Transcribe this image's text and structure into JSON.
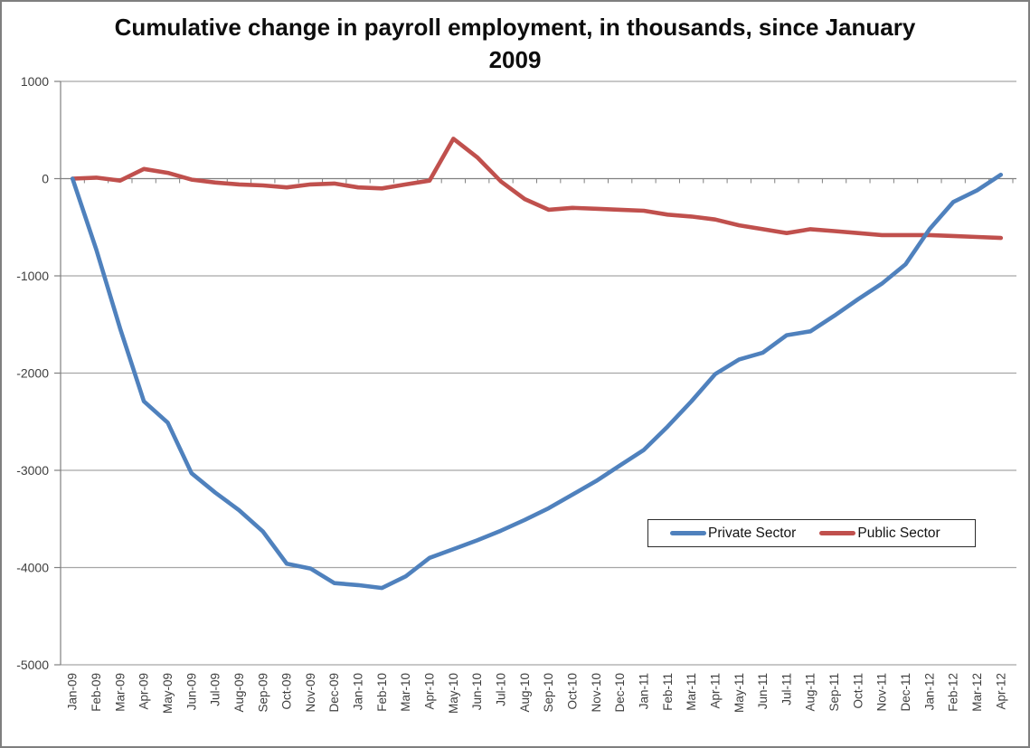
{
  "title": {
    "line1": "Cumulative change in payroll employment, in thousands, since January",
    "line2": "2009"
  },
  "colors": {
    "private": "#4F81BD",
    "public": "#C0504D",
    "gridline": "#A6A6A6",
    "axis": "#808080",
    "tick_label": "#3F3F3F",
    "title_text": "#0D0D0D",
    "legend_border": "#2B2B2B",
    "background": "#FFFFFF"
  },
  "y_axis": {
    "min": -5000,
    "max": 1000,
    "step": 1000,
    "tick_labels": [
      "1000",
      "0",
      "-1000",
      "-2000",
      "-3000",
      "-4000",
      "-5000"
    ]
  },
  "legend": {
    "items": [
      {
        "label": "Private Sector"
      },
      {
        "label": "Public Sector"
      }
    ]
  },
  "chart_data": {
    "type": "line",
    "title": "Cumulative change in payroll employment, in thousands, since January 2009",
    "xlabel": "",
    "ylabel": "",
    "ylim": [
      -5000,
      1000
    ],
    "y_tick_step": 1000,
    "grid": true,
    "legend_position": "inside-right",
    "categories": [
      "Jan-09",
      "Feb-09",
      "Mar-09",
      "Apr-09",
      "May-09",
      "Jun-09",
      "Jul-09",
      "Aug-09",
      "Sep-09",
      "Oct-09",
      "Nov-09",
      "Dec-09",
      "Jan-10",
      "Feb-10",
      "Mar-10",
      "Apr-10",
      "May-10",
      "Jun-10",
      "Jul-10",
      "Aug-10",
      "Sep-10",
      "Oct-10",
      "Nov-10",
      "Dec-10",
      "Jan-11",
      "Feb-11",
      "Mar-11",
      "Apr-11",
      "May-11",
      "Jun-11",
      "Jul-11",
      "Aug-11",
      "Sep-11",
      "Oct-11",
      "Nov-11",
      "Dec-11",
      "Jan-12",
      "Feb-12",
      "Mar-12",
      "Apr-12"
    ],
    "series": [
      {
        "name": "Private Sector",
        "color": "#4F81BD",
        "values": [
          0,
          -730,
          -1540,
          -2290,
          -2510,
          -3030,
          -3230,
          -3410,
          -3630,
          -3960,
          -4010,
          -4160,
          -4180,
          -4210,
          -4090,
          -3900,
          -3810,
          -3720,
          -3620,
          -3510,
          -3390,
          -3250,
          -3110,
          -2950,
          -2790,
          -2550,
          -2290,
          -2010,
          -1860,
          -1790,
          -1610,
          -1570,
          -1410,
          -1240,
          -1080,
          -880,
          -520,
          -240,
          -120,
          40
        ]
      },
      {
        "name": "Public Sector",
        "color": "#C0504D",
        "values": [
          0,
          10,
          -20,
          100,
          60,
          -10,
          -40,
          -60,
          -70,
          -90,
          -60,
          -50,
          -90,
          -100,
          -60,
          -20,
          410,
          220,
          -30,
          -210,
          -320,
          -300,
          -310,
          -320,
          -330,
          -370,
          -390,
          -420,
          -480,
          -520,
          -560,
          -520,
          -540,
          -560,
          -580,
          -580,
          -580,
          -590,
          -600,
          -610
        ]
      }
    ]
  }
}
